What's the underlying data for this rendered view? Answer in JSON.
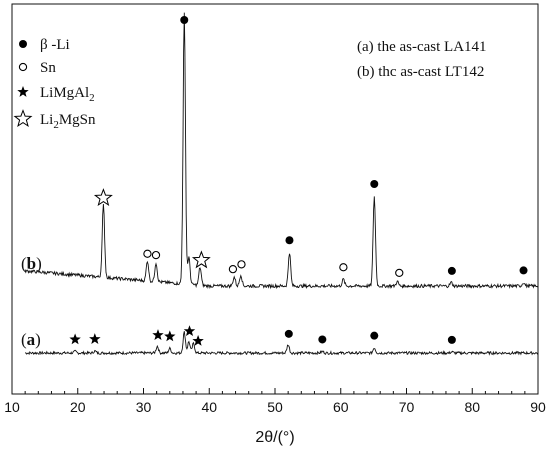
{
  "chart_data": {
    "type": "line",
    "title": "",
    "xlabel": "2θ/(°)",
    "ylabel": "",
    "xlim": [
      10,
      90
    ],
    "xticks": [
      "10",
      "20",
      "30",
      "40",
      "50",
      "60",
      "70",
      "80",
      "90"
    ],
    "grid": false,
    "legend": {
      "placement": "top-left",
      "entries": [
        {
          "marker": "filled-circle",
          "label": "β -Li"
        },
        {
          "marker": "open-circle",
          "label": "Sn"
        },
        {
          "marker": "filled-star",
          "label": "LiMgAl2",
          "base": "LiMgAl",
          "sub": "2",
          "tail": ""
        },
        {
          "marker": "open-star",
          "label": "Li2MgSn",
          "base": "Li",
          "sub": "2",
          "tail": "MgSn"
        }
      ]
    },
    "sample_notes": [
      "(a) the as-cast LA141",
      "(b) thc as-cast LT142"
    ],
    "series": [
      {
        "name": "(a)",
        "label_paren_open": "(",
        "label_letter": "a",
        "label_paren_close": ")",
        "baseline": 0.0,
        "peaks": [
          {
            "x": 19.6,
            "h": 0.04,
            "marker": "filled-star"
          },
          {
            "x": 22.6,
            "h": 0.05,
            "marker": "filled-star"
          },
          {
            "x": 32.1,
            "h": 0.18,
            "marker": "filled-star"
          },
          {
            "x": 34.0,
            "h": 0.12,
            "marker": "filled-star"
          },
          {
            "x": 36.2,
            "h": 0.55,
            "marker": "filled-circle"
          },
          {
            "x": 36.9,
            "h": 0.3,
            "marker": "filled-star"
          },
          {
            "x": 37.6,
            "h": 0.25,
            "marker": "filled-star"
          },
          {
            "x": 52.0,
            "h": 0.22,
            "marker": "filled-circle"
          },
          {
            "x": 57.2,
            "h": 0.04,
            "marker": "filled-circle"
          },
          {
            "x": 65.1,
            "h": 0.14,
            "marker": "filled-circle"
          },
          {
            "x": 76.9,
            "h": 0.03,
            "marker": "filled-circle"
          }
        ]
      },
      {
        "name": "(b)",
        "label_paren_open": "(",
        "label_letter": "b",
        "label_paren_close": ")",
        "baseline": 1.0,
        "peaks": [
          {
            "x": 23.9,
            "h": 1.6,
            "marker": "open-star"
          },
          {
            "x": 30.6,
            "h": 0.45,
            "marker": "open-circle"
          },
          {
            "x": 31.9,
            "h": 0.42,
            "marker": "open-circle"
          },
          {
            "x": 36.2,
            "h": 6.0,
            "marker": "filled-circle"
          },
          {
            "x": 36.9,
            "h": 0.6,
            "marker": "filled-circle"
          },
          {
            "x": 38.6,
            "h": 0.4,
            "marker": "open-star"
          },
          {
            "x": 43.8,
            "h": 0.2,
            "marker": "open-circle"
          },
          {
            "x": 44.8,
            "h": 0.25,
            "marker": "open-circle"
          },
          {
            "x": 52.2,
            "h": 0.75,
            "marker": "filled-circle"
          },
          {
            "x": 60.4,
            "h": 0.15,
            "marker": "open-circle"
          },
          {
            "x": 65.1,
            "h": 2.0,
            "marker": "filled-circle"
          },
          {
            "x": 68.6,
            "h": 0.1,
            "marker": "open-circle"
          },
          {
            "x": 76.8,
            "h": 0.08,
            "marker": "filled-circle"
          },
          {
            "x": 87.8,
            "h": 0.08,
            "marker": "filled-circle"
          }
        ]
      }
    ],
    "peak_markers": [
      {
        "x": 36.2,
        "series": "(b)",
        "marker": "filled-circle"
      },
      {
        "x": 23.9,
        "series": "(b)",
        "marker": "open-star"
      },
      {
        "x": 30.6,
        "series": "(b)",
        "marker": "open-circle"
      },
      {
        "x": 31.9,
        "series": "(b)",
        "marker": "open-circle"
      },
      {
        "x": 38.8,
        "series": "(b)",
        "marker": "open-star"
      },
      {
        "x": 43.6,
        "series": "(b)",
        "marker": "open-circle"
      },
      {
        "x": 44.9,
        "series": "(b)",
        "marker": "open-circle"
      },
      {
        "x": 52.2,
        "series": "(b)",
        "marker": "filled-circle"
      },
      {
        "x": 60.4,
        "series": "(b)",
        "marker": "open-circle"
      },
      {
        "x": 65.1,
        "series": "(b)",
        "marker": "filled-circle"
      },
      {
        "x": 68.9,
        "series": "(b)",
        "marker": "open-circle"
      },
      {
        "x": 76.9,
        "series": "(b)",
        "marker": "filled-circle"
      },
      {
        "x": 87.8,
        "series": "(b)",
        "marker": "filled-circle"
      },
      {
        "x": 19.6,
        "series": "(a)",
        "marker": "filled-star"
      },
      {
        "x": 22.6,
        "series": "(a)",
        "marker": "filled-star"
      },
      {
        "x": 32.2,
        "series": "(a)",
        "marker": "filled-star"
      },
      {
        "x": 34.0,
        "series": "(a)",
        "marker": "filled-star"
      },
      {
        "x": 37.0,
        "series": "(a)",
        "marker": "filled-star"
      },
      {
        "x": 38.3,
        "series": "(a)",
        "marker": "filled-star"
      },
      {
        "x": 52.1,
        "series": "(a)",
        "marker": "filled-circle"
      },
      {
        "x": 57.2,
        "series": "(a)",
        "marker": "filled-circle"
      },
      {
        "x": 65.1,
        "series": "(a)",
        "marker": "filled-circle"
      },
      {
        "x": 76.9,
        "series": "(a)",
        "marker": "filled-circle"
      }
    ]
  }
}
